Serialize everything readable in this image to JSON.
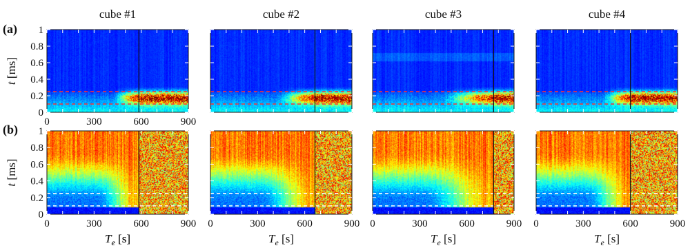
{
  "figure": {
    "row_labels": [
      "(a)",
      "(b)"
    ],
    "column_titles": [
      "cube #1",
      "cube #2",
      "cube #3",
      "cube #4"
    ],
    "ylabel": {
      "symbol": "t",
      "unit": " [ms]"
    },
    "xlabel": {
      "symbol": "T",
      "subscript": "e",
      "unit": " [s]"
    }
  },
  "chart_data": [
    {
      "type": "heatmap",
      "row": "a",
      "title": "cube #1",
      "xlim": [
        0,
        900
      ],
      "ylim": [
        0,
        1
      ],
      "xticks": [
        0,
        300,
        600,
        900
      ],
      "yticks": [
        0,
        0.2,
        0.4,
        0.6,
        0.8,
        1
      ],
      "xticklabels": [
        "0",
        "300",
        "600",
        "900"
      ],
      "yticklabels": [
        "0",
        "0.2",
        "0.4",
        "0.6",
        "0.8",
        "1"
      ],
      "vline_x": 585,
      "hlines": [
        0.1,
        0.25
      ],
      "hline_color": "#ff3030",
      "colormap": "jet"
    },
    {
      "type": "heatmap",
      "row": "a",
      "title": "cube #2",
      "xlim": [
        0,
        900
      ],
      "ylim": [
        0,
        1
      ],
      "xticks": [
        0,
        300,
        600,
        900
      ],
      "vline_x": 665,
      "hlines": [
        0.1,
        0.25
      ],
      "hline_color": "#ff3030",
      "colormap": "jet"
    },
    {
      "type": "heatmap",
      "row": "a",
      "title": "cube #3",
      "xlim": [
        0,
        900
      ],
      "ylim": [
        0,
        1
      ],
      "xticks": [
        0,
        300,
        600,
        900
      ],
      "vline_x": 770,
      "hlines": [
        0.1,
        0.25
      ],
      "hline_color": "#ff3030",
      "colormap": "jet"
    },
    {
      "type": "heatmap",
      "row": "a",
      "title": "cube #4",
      "xlim": [
        0,
        900
      ],
      "ylim": [
        0,
        1
      ],
      "xticks": [
        0,
        300,
        600,
        900
      ],
      "vline_x": 600,
      "hlines": [
        0.1,
        0.25
      ],
      "hline_color": "#ff3030",
      "colormap": "jet"
    },
    {
      "type": "heatmap",
      "row": "b",
      "title": "cube #1",
      "xlim": [
        0,
        900
      ],
      "ylim": [
        0,
        1
      ],
      "xticks": [
        0,
        300,
        600,
        900
      ],
      "yticks": [
        0,
        0.2,
        0.4,
        0.6,
        0.8,
        1
      ],
      "xticklabels": [
        "0",
        "300",
        "600",
        "900"
      ],
      "yticklabels": [
        "0",
        "0.2",
        "0.4",
        "0.6",
        "0.8",
        "1"
      ],
      "vline_x": 585,
      "hlines": [
        0.1,
        0.25
      ],
      "hline_color": "#ffffff",
      "colormap": "jet"
    },
    {
      "type": "heatmap",
      "row": "b",
      "title": "cube #2",
      "xlim": [
        0,
        900
      ],
      "ylim": [
        0,
        1
      ],
      "xticks": [
        0,
        300,
        600,
        900
      ],
      "xticklabels": [
        "0",
        "300",
        "600",
        "900"
      ],
      "vline_x": 665,
      "hlines": [
        0.1,
        0.25
      ],
      "hline_color": "#ffffff",
      "colormap": "jet"
    },
    {
      "type": "heatmap",
      "row": "b",
      "title": "cube #3",
      "xlim": [
        0,
        900
      ],
      "ylim": [
        0,
        1
      ],
      "xticks": [
        0,
        300,
        600,
        900
      ],
      "xticklabels": [
        "0",
        "300",
        "600",
        "900"
      ],
      "vline_x": 770,
      "hlines": [
        0.1,
        0.25
      ],
      "hline_color": "#ffffff",
      "colormap": "jet"
    },
    {
      "type": "heatmap",
      "row": "b",
      "title": "cube #4",
      "xlim": [
        0,
        900
      ],
      "ylim": [
        0,
        1
      ],
      "xticks": [
        0,
        300,
        600,
        900
      ],
      "xticklabels": [
        "0",
        "300",
        "600",
        "900"
      ],
      "vline_x": 600,
      "hlines": [
        0.1,
        0.25
      ],
      "hline_color": "#ffffff",
      "colormap": "jet"
    }
  ]
}
